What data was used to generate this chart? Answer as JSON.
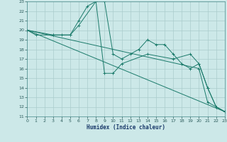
{
  "xlabel": "Humidex (Indice chaleur)",
  "xlim": [
    0,
    23
  ],
  "ylim": [
    11,
    23
  ],
  "xticks": [
    0,
    1,
    2,
    3,
    4,
    5,
    6,
    7,
    8,
    9,
    10,
    11,
    12,
    13,
    14,
    15,
    16,
    17,
    18,
    19,
    20,
    21,
    22,
    23
  ],
  "yticks": [
    11,
    12,
    13,
    14,
    15,
    16,
    17,
    18,
    19,
    20,
    21,
    22,
    23
  ],
  "bg_color": "#cce8e8",
  "grid_color": "#aacccc",
  "line_color": "#1a7a6a",
  "series": [
    {
      "x": [
        0,
        1,
        3,
        5,
        6,
        7,
        8,
        9,
        10,
        11,
        12,
        13,
        14,
        15,
        16,
        17,
        18,
        19,
        20,
        21,
        22,
        23
      ],
      "y": [
        20,
        19.5,
        19.5,
        19.5,
        21,
        22.5,
        23,
        23,
        17.5,
        17,
        17.5,
        18,
        19,
        18.5,
        18.5,
        17.5,
        16.5,
        16,
        16.5,
        14,
        12,
        11.5
      ]
    },
    {
      "x": [
        0,
        3,
        4,
        5,
        6,
        8,
        9,
        10,
        11,
        14,
        17,
        19,
        20,
        21,
        22,
        23
      ],
      "y": [
        20,
        19.5,
        19.5,
        19.5,
        20.5,
        23,
        15.5,
        15.5,
        16.5,
        17.5,
        17,
        17.5,
        16.5,
        14,
        12,
        11.5
      ]
    },
    {
      "x": [
        0,
        23
      ],
      "y": [
        20,
        11.5
      ]
    },
    {
      "x": [
        0,
        20,
        21,
        22,
        23
      ],
      "y": [
        20,
        16,
        12.5,
        12,
        11.5
      ]
    }
  ]
}
